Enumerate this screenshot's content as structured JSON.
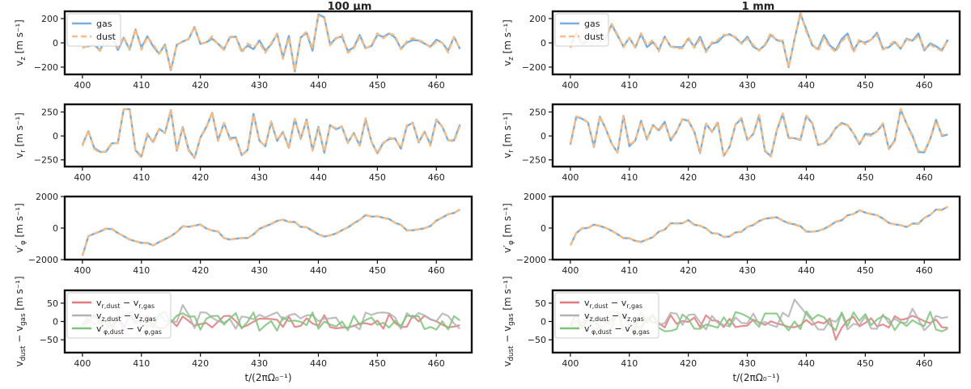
{
  "figure": {
    "column_titles": [
      "100 μm",
      "1 mm"
    ],
    "xlabel": "t/(2πΩ₀⁻¹)"
  },
  "colors": {
    "gas": "#7aaedb",
    "dust": "#f8bd85",
    "v_r_diff": "#e07a7f",
    "v_z_diff": "#b3b3b3",
    "v_phi_diff": "#7ec47a"
  },
  "chart_data": [
    {
      "type": "line",
      "column": 0,
      "row": 0,
      "ylabel": "v_z [m s⁻¹]",
      "ylim": [
        -260,
        260
      ],
      "yticks": [
        -200,
        0,
        200
      ],
      "xlim": [
        397,
        466
      ],
      "xticks": [
        400,
        410,
        420,
        430,
        440,
        450,
        460
      ],
      "legend": "upper-left",
      "series": [
        {
          "name": "gas",
          "key": "gas"
        },
        {
          "name": "dust",
          "key": "dust"
        }
      ]
    },
    {
      "type": "line",
      "column": 0,
      "row": 1,
      "ylabel": "v_r [m s⁻¹]",
      "ylim": [
        -320,
        330
      ],
      "yticks": [
        -250,
        0,
        250
      ],
      "xlim": [
        397,
        466
      ],
      "xticks": [
        400,
        410,
        420,
        430,
        440,
        450,
        460
      ],
      "series": [
        {
          "key": "gas"
        },
        {
          "key": "dust"
        }
      ]
    },
    {
      "type": "line",
      "column": 0,
      "row": 2,
      "ylabel": "v′_φ [m s⁻¹]",
      "ylim": [
        -2000,
        2000
      ],
      "yticks": [
        -2000,
        0,
        2000
      ],
      "xlim": [
        397,
        466
      ],
      "xticks": [
        400,
        410,
        420,
        430,
        440,
        450,
        460
      ],
      "series": [
        {
          "key": "gas"
        },
        {
          "key": "dust"
        }
      ]
    },
    {
      "type": "line",
      "column": 0,
      "row": 3,
      "ylabel": "v_dust − v_gas [m s⁻¹]",
      "ylim": [
        -85,
        85
      ],
      "yticks": [
        -50,
        0,
        50
      ],
      "xlim": [
        397,
        466
      ],
      "xticks": [
        400,
        410,
        420,
        430,
        440,
        450,
        460
      ],
      "xlabel": "t/(2πΩ₀⁻¹)",
      "legend": "upper-left",
      "series": [
        {
          "name": "v_r,dust − v_r,gas",
          "key": "v_r_diff"
        },
        {
          "name": "v_z,dust − v_z,gas",
          "key": "v_z_diff"
        },
        {
          "name": "v′_φ,dust − v′_φ,gas",
          "key": "v_phi_diff"
        }
      ]
    },
    {
      "type": "line",
      "column": 1,
      "row": 0,
      "ylabel": "v_z [m s⁻¹]",
      "ylim": [
        -260,
        260
      ],
      "yticks": [
        -200,
        0,
        200
      ],
      "xlim": [
        397,
        466
      ],
      "xticks": [
        400,
        410,
        420,
        430,
        440,
        450,
        460
      ],
      "legend": "upper-left",
      "series": [
        {
          "name": "gas",
          "key": "gas"
        },
        {
          "name": "dust",
          "key": "dust"
        }
      ]
    },
    {
      "type": "line",
      "column": 1,
      "row": 1,
      "ylabel": "v_r [m s⁻¹]",
      "ylim": [
        -320,
        330
      ],
      "yticks": [
        -250,
        0,
        250
      ],
      "xlim": [
        397,
        466
      ],
      "xticks": [
        400,
        410,
        420,
        430,
        440,
        450,
        460
      ],
      "series": [
        {
          "key": "gas"
        },
        {
          "key": "dust"
        }
      ]
    },
    {
      "type": "line",
      "column": 1,
      "row": 2,
      "ylabel": "v′_φ [m s⁻¹]",
      "ylim": [
        -2000,
        2000
      ],
      "yticks": [
        -2000,
        0,
        2000
      ],
      "xlim": [
        397,
        466
      ],
      "xticks": [
        400,
        410,
        420,
        430,
        440,
        450,
        460
      ],
      "series": [
        {
          "key": "gas"
        },
        {
          "key": "dust"
        }
      ]
    },
    {
      "type": "line",
      "column": 1,
      "row": 3,
      "ylabel": "v_dust − v_gas [m s⁻¹]",
      "ylim": [
        -85,
        85
      ],
      "yticks": [
        -50,
        0,
        50
      ],
      "xlim": [
        397,
        466
      ],
      "xticks": [
        400,
        410,
        420,
        430,
        440,
        450,
        460
      ],
      "xlabel": "t/(2πΩ₀⁻¹)",
      "legend": "upper-left",
      "series": [
        {
          "name": "v_r,dust − v_r,gas",
          "key": "v_r_diff"
        },
        {
          "name": "v_z,dust − v_z,gas",
          "key": "v_z_diff"
        },
        {
          "name": "v′_φ,dust − v′_φ,gas",
          "key": "v_phi_diff"
        }
      ]
    }
  ]
}
